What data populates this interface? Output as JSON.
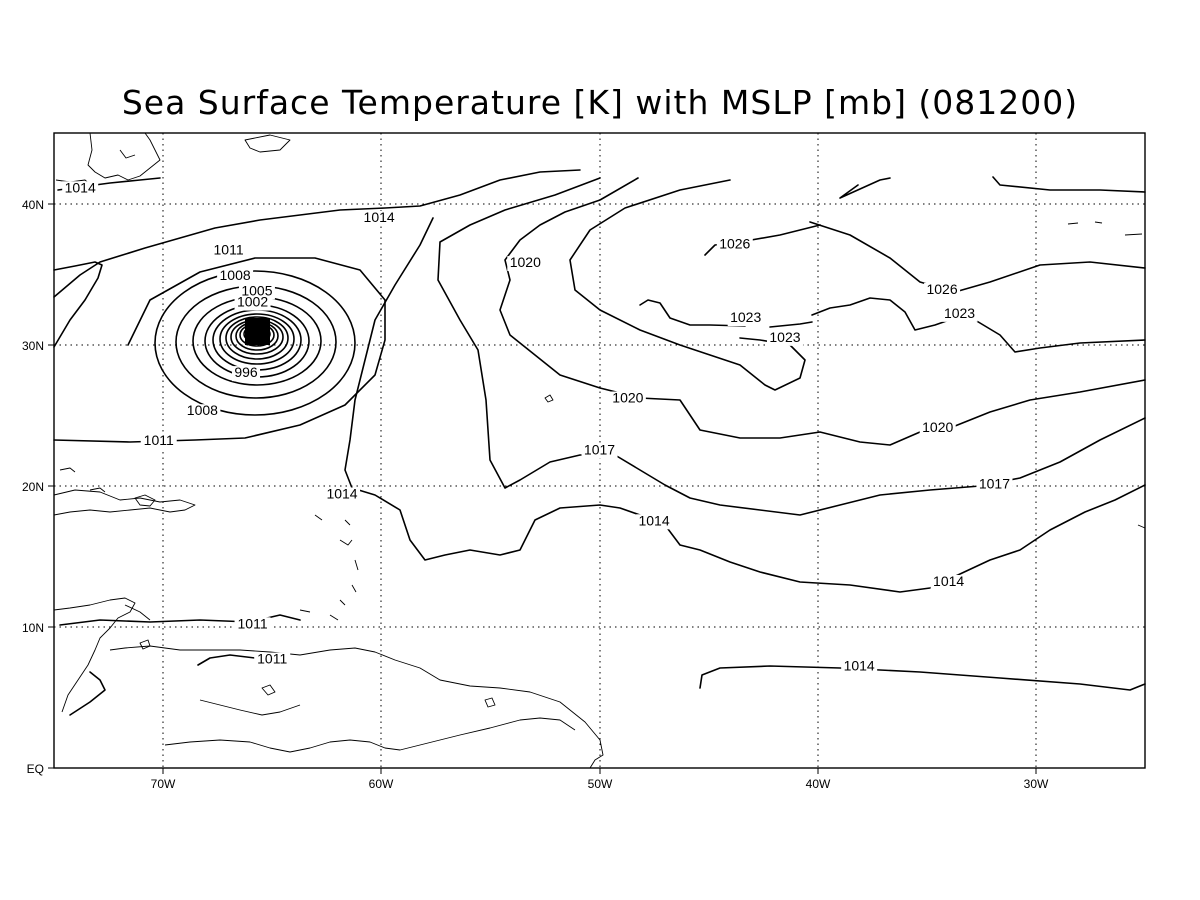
{
  "title": "Sea Surface Temperature [K] with MSLP [mb] (081200)",
  "x_ticks": [
    "70W",
    "60W",
    "50W",
    "40W",
    "30W"
  ],
  "y_ticks": [
    "EQ",
    "10N",
    "20N",
    "30N",
    "40N"
  ],
  "contour_labels": [
    {
      "text": "1014",
      "lon": -73.8,
      "lat": 40.8
    },
    {
      "text": "1014",
      "lon": -60.1,
      "lat": 38.7
    },
    {
      "text": "1011",
      "lon": -67.0,
      "lat": 36.4
    },
    {
      "text": "1008",
      "lon": -66.7,
      "lat": 34.6
    },
    {
      "text": "1005",
      "lon": -65.7,
      "lat": 33.5
    },
    {
      "text": "1002",
      "lon": -65.9,
      "lat": 32.7
    },
    {
      "text": "996",
      "lon": -66.2,
      "lat": 27.7
    },
    {
      "text": "1008",
      "lon": -68.2,
      "lat": 25.0
    },
    {
      "text": "1011",
      "lon": -70.2,
      "lat": 22.9
    },
    {
      "text": "1014",
      "lon": -61.8,
      "lat": 19.1
    },
    {
      "text": "1020",
      "lon": -53.4,
      "lat": 35.5
    },
    {
      "text": "1026",
      "lon": -43.8,
      "lat": 36.8
    },
    {
      "text": "1026",
      "lon": -34.3,
      "lat": 33.6
    },
    {
      "text": "1023",
      "lon": -43.3,
      "lat": 31.6
    },
    {
      "text": "1023",
      "lon": -41.5,
      "lat": 30.2
    },
    {
      "text": "1023",
      "lon": -33.5,
      "lat": 31.9
    },
    {
      "text": "1020",
      "lon": -48.7,
      "lat": 25.9
    },
    {
      "text": "1020",
      "lon": -34.5,
      "lat": 23.8
    },
    {
      "text": "1017",
      "lon": -50.0,
      "lat": 22.2
    },
    {
      "text": "1017",
      "lon": -31.9,
      "lat": 19.8
    },
    {
      "text": "1014",
      "lon": -47.5,
      "lat": 17.2
    },
    {
      "text": "1014",
      "lon": -34.0,
      "lat": 12.9
    },
    {
      "text": "1011",
      "lon": -65.9,
      "lat": 9.9
    },
    {
      "text": "1011",
      "lon": -65.0,
      "lat": 7.4
    },
    {
      "text": "1014",
      "lon": -38.1,
      "lat": 6.9
    }
  ]
}
